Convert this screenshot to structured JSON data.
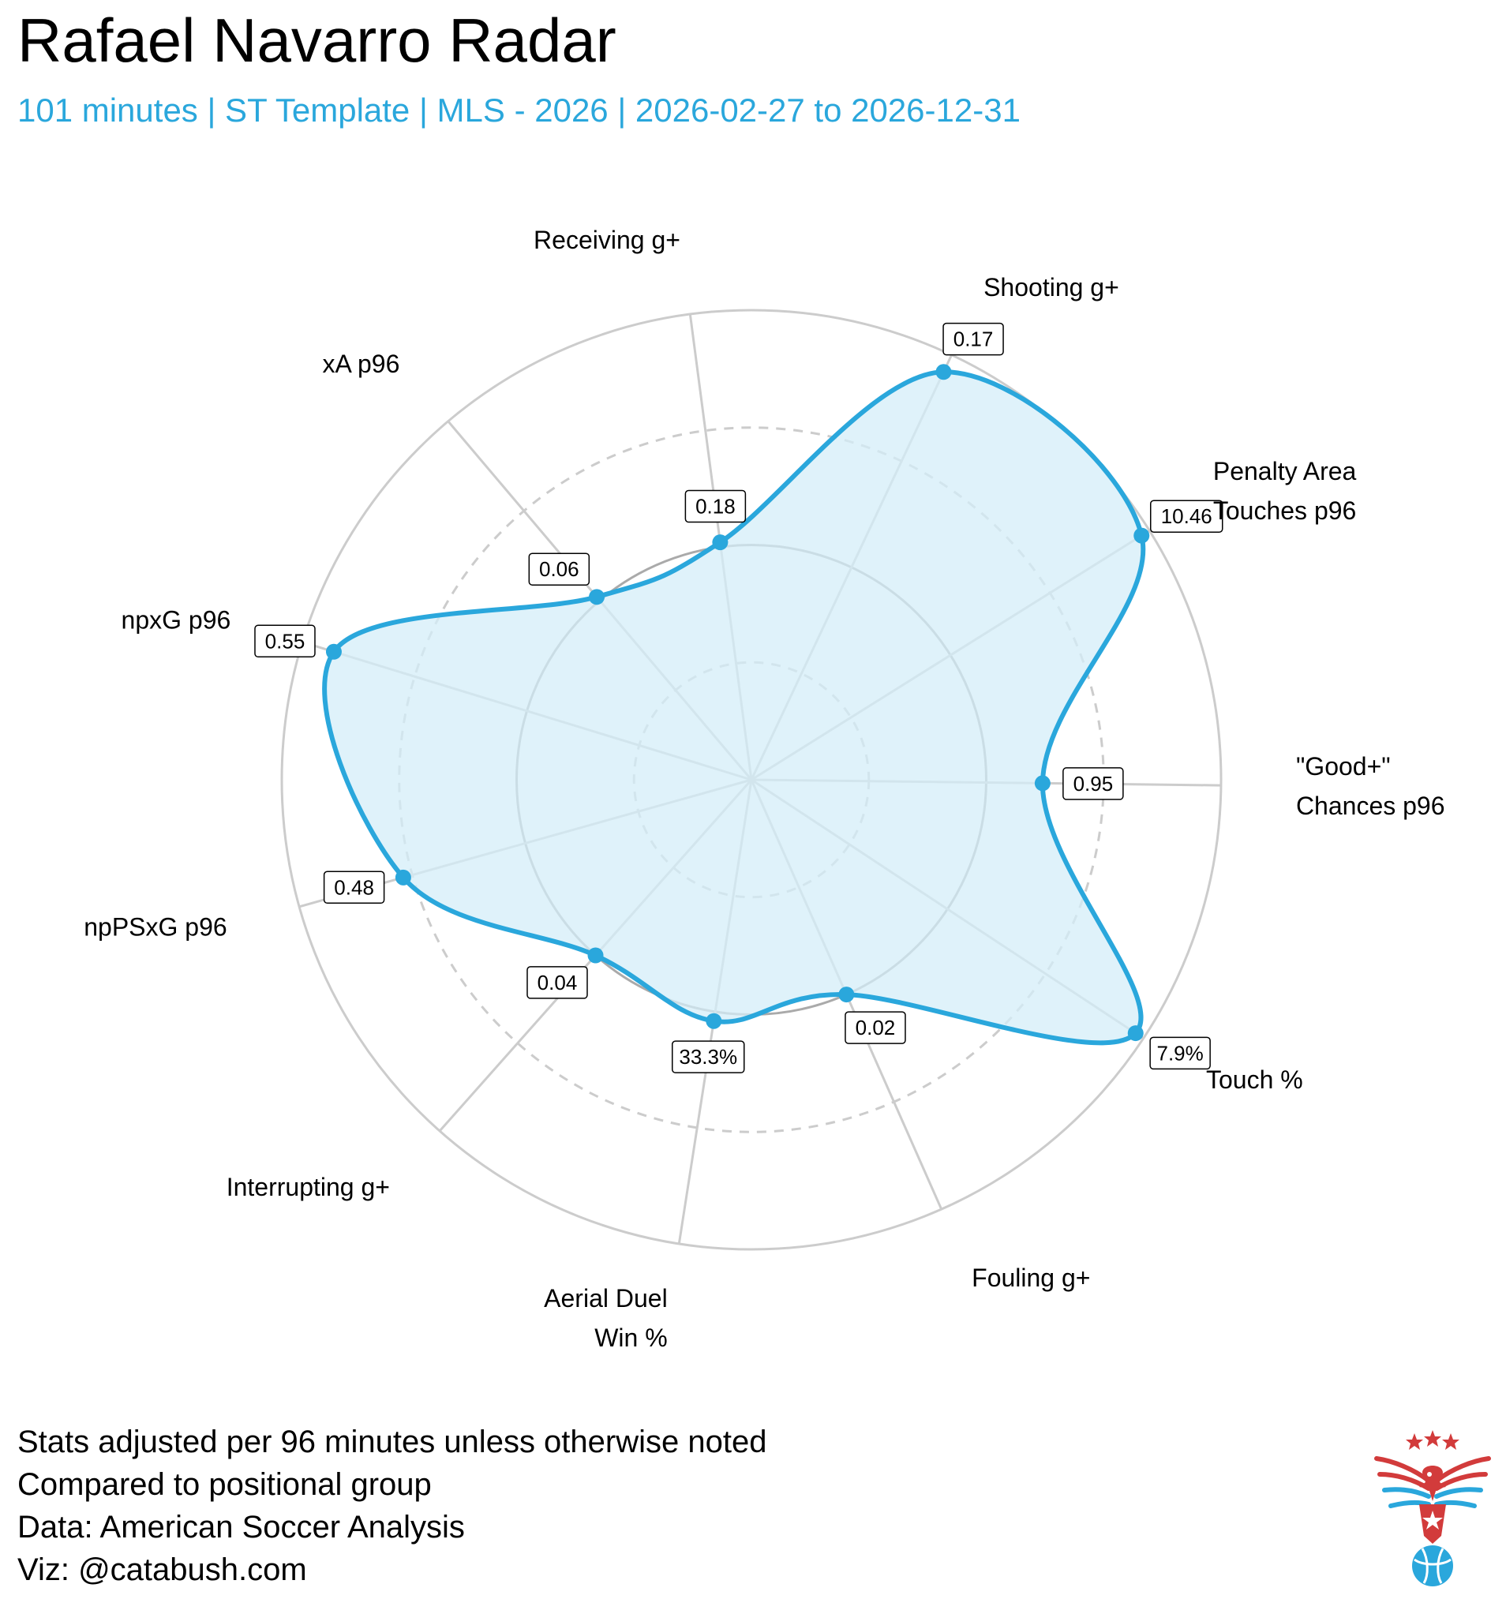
{
  "title": "Rafael Navarro Radar",
  "subtitle": "101 minutes | ST Template | MLS - 2026 | 2026-02-27 to 2026-12-31",
  "colors": {
    "accent": "#2aa7dc",
    "fill": "#d4edf8",
    "grid": "#cccccc",
    "logo_red": "#d23b3b",
    "logo_blue": "#2aa7dc"
  },
  "chart_data": {
    "type": "radar",
    "title": "",
    "rings": 4,
    "axes": [
      {
        "label": [
          "Receiving g+"
        ],
        "value_label": "0.18",
        "level": 0.51
      },
      {
        "label": [
          "Shooting g+"
        ],
        "value_label": "0.17",
        "level": 0.96
      },
      {
        "label": [
          "Penalty Area",
          "Touches p96"
        ],
        "value_label": "10.46",
        "level": 0.98
      },
      {
        "label": [
          "\"Good+\"",
          "Chances p96"
        ],
        "value_label": "0.95",
        "level": 0.62
      },
      {
        "label": [
          "Touch %"
        ],
        "value_label": "7.9%",
        "level": 0.98
      },
      {
        "label": [
          "Fouling g+"
        ],
        "value_label": "0.02",
        "level": 0.5
      },
      {
        "label": [
          "Aerial Duel",
          "Win %"
        ],
        "value_label": "33.3%",
        "level": 0.52
      },
      {
        "label": [
          "Interrupting g+"
        ],
        "value_label": "0.04",
        "level": 0.5
      },
      {
        "label": [
          "npPSxG p96"
        ],
        "value_label": "0.48",
        "level": 0.77
      },
      {
        "label": [
          "npxG p96"
        ],
        "value_label": "0.55",
        "level": 0.93
      },
      {
        "label": [
          "xA p96"
        ],
        "value_label": "0.06",
        "level": 0.51
      }
    ]
  },
  "footer": [
    "Stats adjusted per 96 minutes unless otherwise noted",
    "Compared to positional group",
    "Data: American Soccer Analysis",
    "Viz: @catabush.com"
  ],
  "logo": {
    "name": "eagle-logo"
  }
}
